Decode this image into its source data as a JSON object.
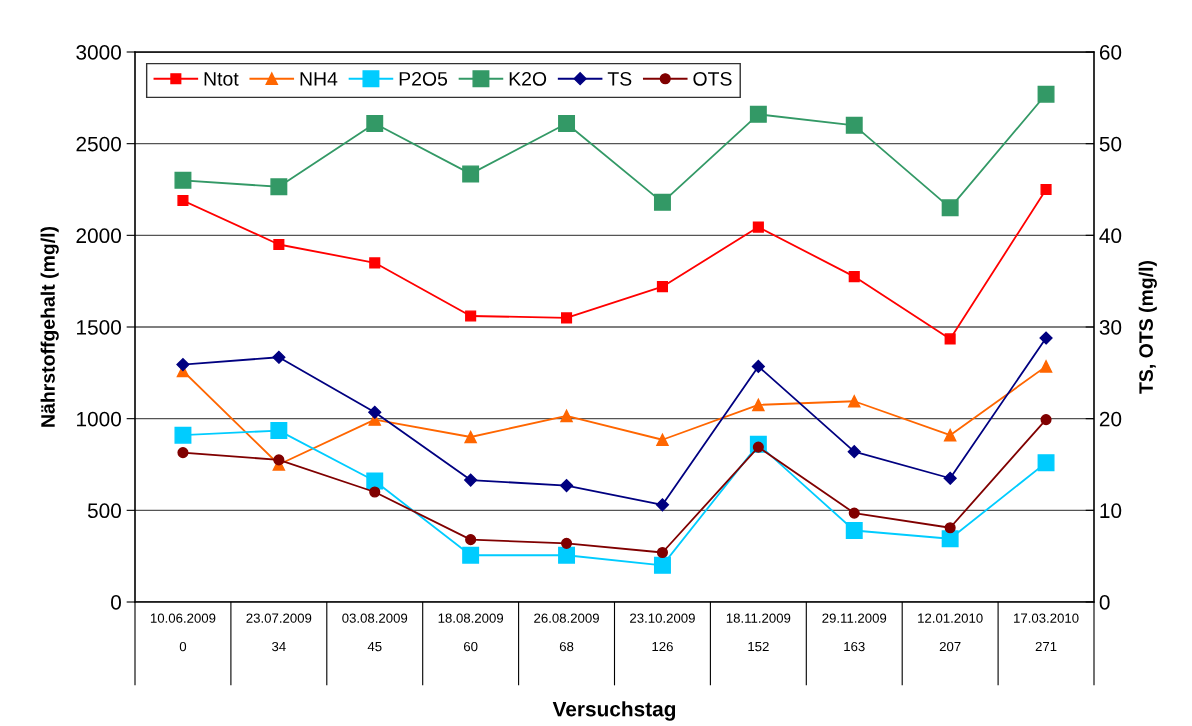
{
  "chart_data": {
    "type": "line",
    "xlabel": "Versuchstag",
    "ylabel": "Nährstoffgehalt (mg/l)",
    "y2label": "TS, OTS (mg/l)",
    "categories": [
      "10.06.2009\n0",
      "23.07.2009\n34",
      "03.08.2009\n45",
      "18.08.2009\n60",
      "26.08.2009\n68",
      "23.10.2009\n126",
      "18.11.2009\n152",
      "29.11.2009\n163",
      "12.01.2010\n207",
      "17.03.2010\n271"
    ],
    "series": [
      {
        "name": "Ntot",
        "color": "#ff0000",
        "marker": "square",
        "values": [
          2190,
          1950,
          1850,
          1560,
          1550,
          1720,
          2045,
          1775,
          1435,
          2250
        ]
      },
      {
        "name": "NH4",
        "color": "#ff6600",
        "marker": "triangle",
        "values": [
          1260,
          750,
          995,
          900,
          1015,
          885,
          1075,
          1095,
          910,
          1285
        ]
      },
      {
        "name": "P2O5",
        "color": "#00ccff",
        "marker": "square",
        "values": [
          910,
          935,
          660,
          255,
          255,
          200,
          860,
          390,
          345,
          760
        ]
      },
      {
        "name": "K2O",
        "color": "#339966",
        "marker": "square",
        "values": [
          2300,
          2265,
          2610,
          2335,
          2610,
          2180,
          2660,
          2600,
          2150,
          2770
        ]
      },
      {
        "name": "TS",
        "color": "#000080",
        "marker": "diamond",
        "axis": "y2",
        "values": [
          25.9,
          26.7,
          20.7,
          13.3,
          12.7,
          10.6,
          25.7,
          16.4,
          13.5,
          28.8
        ]
      },
      {
        "name": "OTS",
        "color": "#800000",
        "marker": "circle",
        "axis": "y2",
        "values": [
          16.3,
          15.5,
          12.0,
          6.8,
          6.4,
          5.4,
          16.9,
          9.7,
          8.1,
          19.9
        ]
      }
    ],
    "ylim": [
      0,
      3000
    ],
    "yticks": [
      0,
      500,
      1000,
      1500,
      2000,
      2500,
      3000
    ],
    "y2lim": [
      0,
      60
    ],
    "y2ticks": [
      0,
      10,
      20,
      30,
      40,
      50,
      60
    ],
    "grid": "y",
    "legend": "top left",
    "line_style": "solid"
  }
}
